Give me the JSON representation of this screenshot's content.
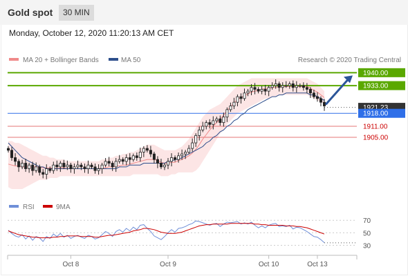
{
  "header": {
    "title": "Gold spot",
    "timeframe": "30 MIN",
    "datetime": "Monday, October 12, 2020 11:20:13 AM CET"
  },
  "legend": {
    "bollinger_label": "MA 20 + Bollinger Bands",
    "ma50_label": "MA 50",
    "credit": "Research © 2020 Trading Central",
    "bollinger_color": "#f08a8a",
    "ma50_color": "#2e4f8c"
  },
  "rsi_legend": {
    "rsi_label": "RSI",
    "ma_label": "9MA",
    "rsi_color": "#6f8fd8",
    "ma_color": "#cc0000"
  },
  "chart_data": [
    {
      "type": "candlestick",
      "ylim": [
        1874,
        1942
      ],
      "x_ticks": [
        "Oct 8",
        "Oct 9",
        "Oct 10",
        "Oct 13"
      ],
      "last_price": 1921.23,
      "levels": [
        {
          "label": "1940.00",
          "value": 1940.0,
          "kind": "resistance",
          "color": "#5aa800",
          "text_color": "#ffffff"
        },
        {
          "label": "1933.00",
          "value": 1933.0,
          "kind": "resistance",
          "color": "#5aa800",
          "text_color": "#ffffff"
        },
        {
          "label": "1921.23",
          "value": 1921.23,
          "kind": "current",
          "color": "#333333",
          "text_color": "#ffffff"
        },
        {
          "label": "1918.00",
          "value": 1918.0,
          "kind": "pivot",
          "color": "#2f6fe8",
          "text_color": "#ffffff"
        },
        {
          "label": "1911.00",
          "value": 1911.0,
          "kind": "support",
          "color": "#d83a3a",
          "text_color": "#cc0000"
        },
        {
          "label": "1905.00",
          "value": 1905.0,
          "kind": "support",
          "color": "#d83a3a",
          "text_color": "#cc0000"
        }
      ],
      "close": [
        1898,
        1894,
        1892,
        1889,
        1891,
        1888,
        1890,
        1887,
        1889,
        1886,
        1885,
        1888,
        1887,
        1890,
        1889,
        1891,
        1889,
        1890,
        1888,
        1889,
        1890,
        1889,
        1888,
        1890,
        1889,
        1887,
        1888,
        1890,
        1892,
        1891,
        1889,
        1892,
        1893,
        1892,
        1894,
        1893,
        1895,
        1894,
        1897,
        1899,
        1898,
        1896,
        1893,
        1891,
        1889,
        1890,
        1892,
        1894,
        1893,
        1895,
        1896,
        1897,
        1899,
        1902,
        1906,
        1909,
        1911,
        1913,
        1912,
        1914,
        1915,
        1913,
        1916,
        1920,
        1922,
        1924,
        1927,
        1926,
        1929,
        1930,
        1932,
        1931,
        1930,
        1931,
        1930,
        1932,
        1933,
        1934,
        1932,
        1933,
        1933,
        1934,
        1932,
        1933,
        1933,
        1932,
        1931,
        1929,
        1927,
        1926,
        1924,
        1922
      ],
      "bb_upper": [
        1903,
        1903,
        1902,
        1902,
        1901,
        1900,
        1899,
        1898,
        1897,
        1896,
        1895,
        1895,
        1894,
        1894,
        1893,
        1893,
        1893,
        1892,
        1892,
        1892,
        1892,
        1892,
        1892,
        1892,
        1892,
        1892,
        1892,
        1893,
        1893,
        1894,
        1894,
        1895,
        1895,
        1896,
        1896,
        1897,
        1897,
        1898,
        1899,
        1900,
        1901,
        1901,
        1901,
        1900,
        1899,
        1898,
        1898,
        1898,
        1898,
        1899,
        1900,
        1902,
        1904,
        1907,
        1910,
        1913,
        1916,
        1918,
        1920,
        1921,
        1922,
        1923,
        1925,
        1927,
        1929,
        1931,
        1933,
        1934,
        1935,
        1936,
        1937,
        1937,
        1937,
        1937,
        1937,
        1937,
        1937,
        1937,
        1937,
        1937,
        1937,
        1937,
        1937,
        1937,
        1937,
        1937,
        1937,
        1936,
        1935,
        1934,
        1932,
        1930
      ],
      "bb_lower": [
        1878,
        1877,
        1877,
        1877,
        1877,
        1878,
        1879,
        1880,
        1881,
        1882,
        1882,
        1882,
        1883,
        1883,
        1883,
        1884,
        1884,
        1884,
        1884,
        1884,
        1884,
        1884,
        1884,
        1884,
        1884,
        1884,
        1884,
        1884,
        1884,
        1884,
        1884,
        1884,
        1884,
        1884,
        1884,
        1884,
        1885,
        1885,
        1885,
        1885,
        1885,
        1885,
        1885,
        1885,
        1884,
        1884,
        1884,
        1885,
        1885,
        1886,
        1886,
        1886,
        1886,
        1886,
        1887,
        1889,
        1892,
        1895,
        1898,
        1901,
        1904,
        1907,
        1909,
        1912,
        1914,
        1916,
        1918,
        1919,
        1920,
        1921,
        1922,
        1923,
        1924,
        1925,
        1926,
        1926,
        1927,
        1927,
        1928,
        1928,
        1928,
        1928,
        1928,
        1928,
        1928,
        1928,
        1928,
        1927,
        1926,
        1925,
        1924,
        1923
      ],
      "ma50": [
        1902,
        1900,
        1898,
        1896,
        1894,
        1893,
        1892,
        1891,
        1890,
        1889,
        1889,
        1888,
        1888,
        1888,
        1888,
        1888,
        1888,
        1888,
        1888,
        1888,
        1888,
        1888,
        1888,
        1888,
        1888,
        1888,
        1888,
        1888,
        1888,
        1888,
        1888,
        1888,
        1889,
        1889,
        1889,
        1890,
        1890,
        1890,
        1890,
        1891,
        1891,
        1891,
        1891,
        1891,
        1891,
        1891,
        1892,
        1892,
        1893,
        1893,
        1894,
        1895,
        1896,
        1897,
        1898,
        1899,
        1900,
        1902,
        1903,
        1905,
        1906,
        1908,
        1909,
        1911,
        1912,
        1914,
        1915,
        1917,
        1918,
        1920,
        1921,
        1922,
        1923,
        1924,
        1925,
        1926,
        1927,
        1927,
        1928,
        1928,
        1929,
        1929,
        1929,
        1929,
        1929,
        1929,
        1929,
        1928,
        1928,
        1927,
        1926,
        1925
      ]
    },
    {
      "type": "line",
      "ylim": [
        25,
        78
      ],
      "y_ticks": [
        70,
        50,
        30
      ],
      "series": [
        {
          "name": "RSI",
          "values": [
            54,
            49,
            45,
            43,
            47,
            40,
            45,
            38,
            44,
            42,
            36,
            44,
            41,
            48,
            44,
            49,
            43,
            46,
            41,
            44,
            46,
            43,
            41,
            46,
            44,
            40,
            42,
            47,
            52,
            49,
            44,
            52,
            55,
            51,
            57,
            53,
            59,
            55,
            62,
            63,
            57,
            52,
            45,
            42,
            39,
            44,
            50,
            55,
            51,
            57,
            58,
            60,
            63,
            65,
            69,
            68,
            66,
            64,
            62,
            64,
            65,
            60,
            64,
            67,
            66,
            67,
            68,
            64,
            66,
            64,
            67,
            62,
            58,
            61,
            58,
            62,
            64,
            65,
            60,
            61,
            60,
            62,
            56,
            59,
            58,
            55,
            52,
            48,
            44,
            43,
            39,
            34
          ]
        },
        {
          "name": "9MA",
          "values": [
            53,
            51,
            49,
            47,
            46,
            45,
            44,
            43,
            43,
            42,
            42,
            42,
            42,
            43,
            43,
            44,
            44,
            45,
            45,
            45,
            45,
            44,
            44,
            44,
            44,
            43,
            43,
            44,
            45,
            46,
            46,
            47,
            48,
            49,
            50,
            51,
            53,
            54,
            55,
            57,
            57,
            56,
            55,
            53,
            51,
            50,
            49,
            49,
            49,
            50,
            51,
            53,
            55,
            57,
            59,
            61,
            62,
            63,
            63,
            64,
            64,
            64,
            64,
            64,
            65,
            65,
            65,
            65,
            65,
            65,
            65,
            64,
            64,
            63,
            63,
            62,
            62,
            62,
            62,
            62,
            61,
            61,
            61,
            60,
            60,
            59,
            58,
            56,
            54,
            52,
            50,
            48
          ]
        }
      ]
    }
  ]
}
